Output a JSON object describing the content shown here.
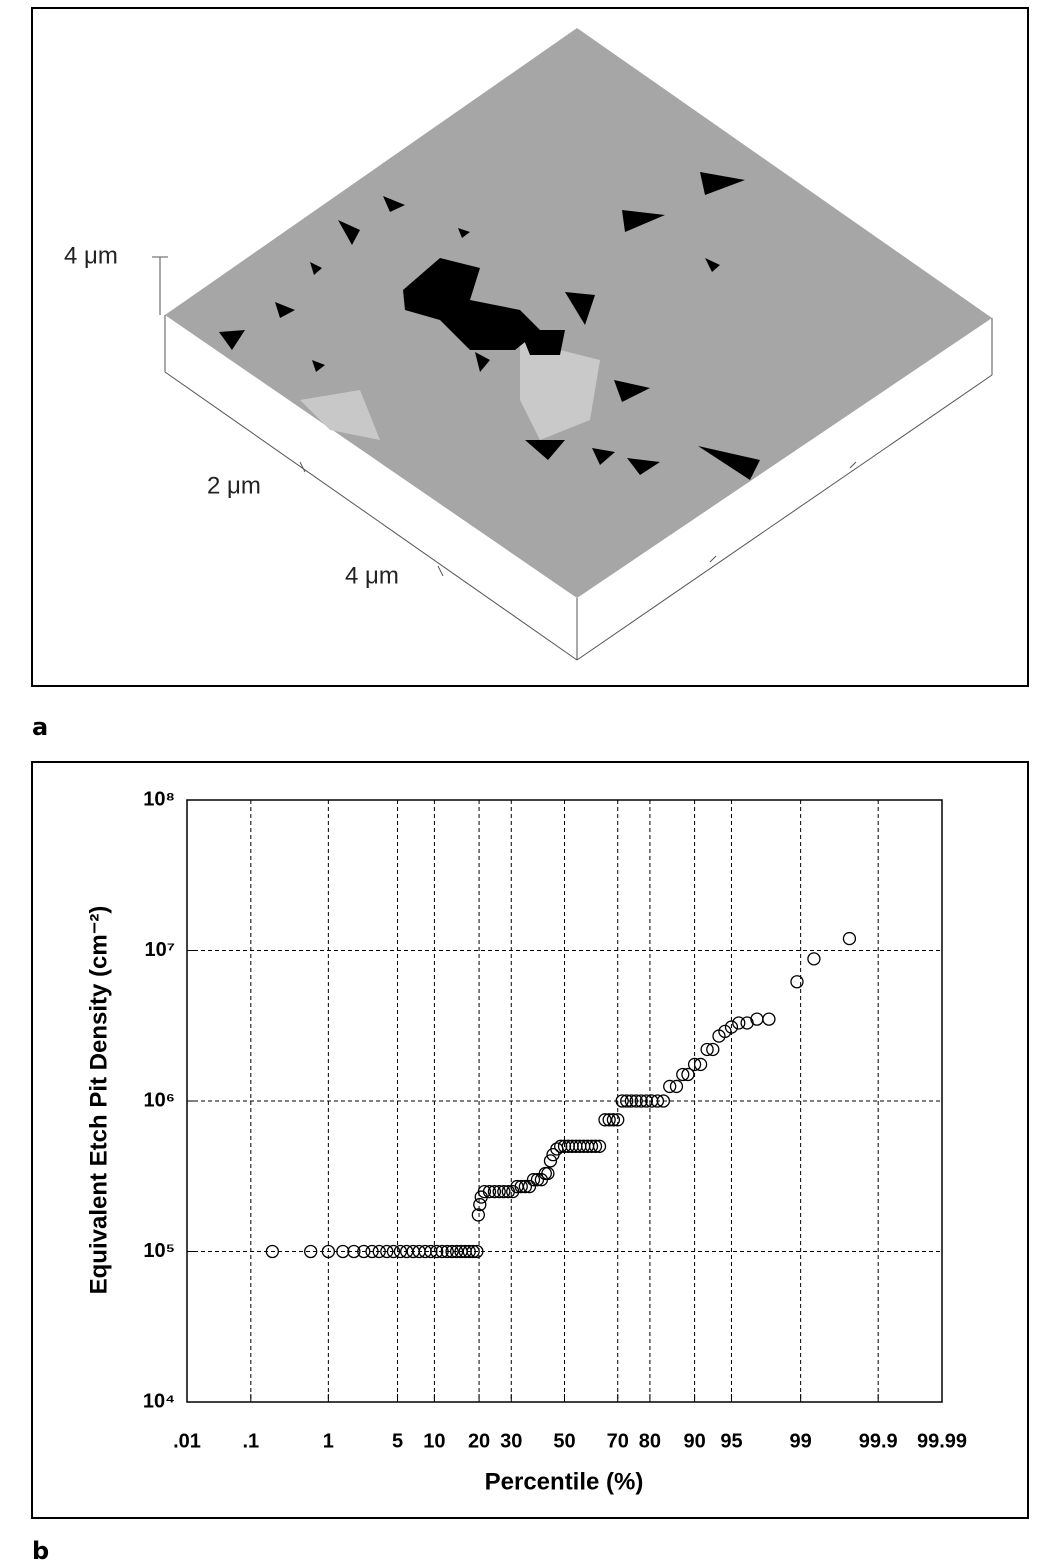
{
  "panel_a": {
    "label": "a",
    "height_label": "4 μm",
    "axis_labels": [
      "2 μm",
      "4 μm"
    ]
  },
  "panel_b": {
    "label": "b"
  },
  "chart_data": {
    "type": "scatter",
    "x_label": "Percentile (%)",
    "y_label": "Equivalent Etch Pit Density (cm⁻²)",
    "xscale": "probability",
    "yscale": "log",
    "grid": true,
    "marker": "open-circle",
    "xlim": [
      0.01,
      99.99
    ],
    "xticks": [
      {
        "value": 0.01,
        "label": ".01"
      },
      {
        "value": 0.1,
        "label": ".1"
      },
      1,
      5,
      10,
      20,
      30,
      50,
      70,
      80,
      90,
      95,
      99,
      99.9,
      99.99
    ],
    "ylim": [
      10000,
      100000000
    ],
    "yticks": [
      {
        "value": 10000,
        "label": "10⁴"
      },
      {
        "value": 100000,
        "label": "10⁵"
      },
      {
        "value": 1000000,
        "label": "10⁶"
      },
      {
        "value": 10000000,
        "label": "10⁷"
      },
      {
        "value": 100000000,
        "label": "10⁸"
      }
    ],
    "x": [
      0.2,
      0.62,
      1,
      1.45,
      1.9,
      2.4,
      2.9,
      3.4,
      4,
      4.6,
      5.3,
      6,
      6.8,
      7.6,
      8.5,
      9.4,
      10.4,
      11.4,
      12.4,
      13.4,
      14.4,
      15.4,
      16.4,
      17.4,
      18.4,
      19.4,
      19.8,
      20.2,
      20.6,
      21.5,
      23,
      24.5,
      26,
      27.5,
      29,
      30.5,
      32,
      33.5,
      35,
      36.5,
      38,
      39.5,
      41,
      42.5,
      43.5,
      44.5,
      45.5,
      47,
      48.5,
      50,
      51.5,
      53,
      54.5,
      56,
      57.5,
      59,
      60.5,
      62,
      63.5,
      65.5,
      67,
      68.5,
      70,
      71.5,
      73,
      74.5,
      76,
      77.5,
      79,
      80.5,
      82,
      83.5,
      85,
      86.5,
      87.8,
      88.8,
      90,
      91,
      92,
      92.8,
      93.6,
      94.3,
      95,
      95.7,
      96.4,
      97.1,
      97.8,
      98.9,
      99.3,
      99.75
    ],
    "series": [
      {
        "color": "#000000",
        "values": [
          100000,
          100000,
          100000,
          100000,
          100000,
          100000,
          100000,
          100000,
          100000,
          100000,
          100000,
          100000,
          100000,
          100000,
          100000,
          100000,
          100000,
          100000,
          100000,
          100000,
          100000,
          100000,
          100000,
          100000,
          100000,
          100000,
          175000,
          205000,
          230000,
          250000,
          250000,
          250000,
          250000,
          250000,
          250000,
          250000,
          270000,
          270000,
          270000,
          270000,
          300000,
          300000,
          300000,
          330000,
          330000,
          400000,
          440000,
          480000,
          500000,
          500000,
          500000,
          500000,
          500000,
          500000,
          500000,
          500000,
          500000,
          500000,
          500000,
          750000,
          750000,
          750000,
          750000,
          1000000,
          1000000,
          1000000,
          1000000,
          1000000,
          1000000,
          1000000,
          1000000,
          1000000,
          1250000,
          1250000,
          1500000,
          1500000,
          1750000,
          1750000,
          2200000,
          2200000,
          2700000,
          2900000,
          3100000,
          3300000,
          3300000,
          3500000,
          3500000,
          6200000,
          8800000,
          12000000
        ]
      }
    ]
  }
}
